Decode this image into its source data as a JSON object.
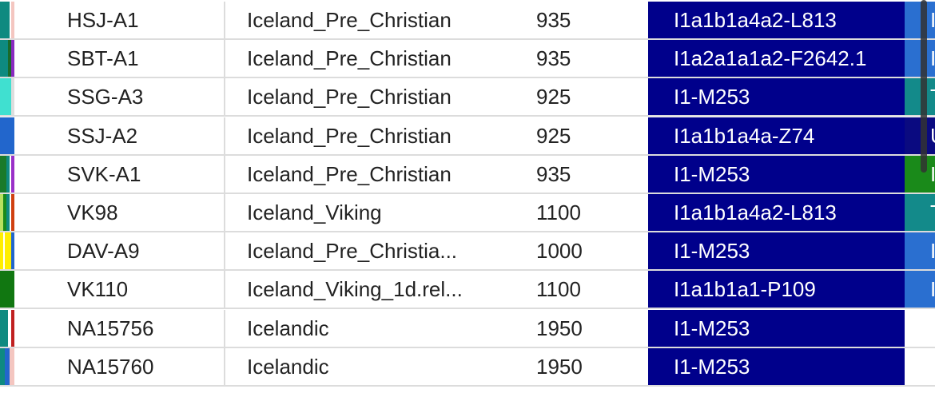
{
  "table": {
    "rows": [
      [
        "HSJ-A1",
        "Iceland_Pre_Christian",
        "935",
        "I1a1b1a4a2-L813",
        "I"
      ],
      [
        "SBT-A1",
        "Iceland_Pre_Christian",
        "935",
        "I1a2a1a1a2-F2642.1",
        "I"
      ],
      [
        "SSG-A3",
        "Iceland_Pre_Christian",
        "925",
        "I1-M253",
        "T"
      ],
      [
        "SSJ-A2",
        "Iceland_Pre_Christian",
        "925",
        "I1a1b1a4a-Z74",
        "U"
      ],
      [
        "SVK-A1",
        "Iceland_Pre_Christian",
        "935",
        "I1-M253",
        "I"
      ],
      [
        "VK98",
        "Iceland_Viking",
        "1100",
        "I1a1b1a4a2-L813",
        "T"
      ],
      [
        "DAV-A9",
        "Iceland_Pre_Christia...",
        "1000",
        "I1-M253",
        "I"
      ],
      [
        "VK110",
        "Iceland_Viking_1d.rel...",
        "1100",
        "I1a1b1a1-P109",
        "I"
      ],
      [
        "NA15756",
        "Icelandic",
        "1950",
        "I1-M253"
      ],
      [
        "NA15760",
        "Icelandic",
        "1950",
        "I1-M253"
      ]
    ]
  }
}
